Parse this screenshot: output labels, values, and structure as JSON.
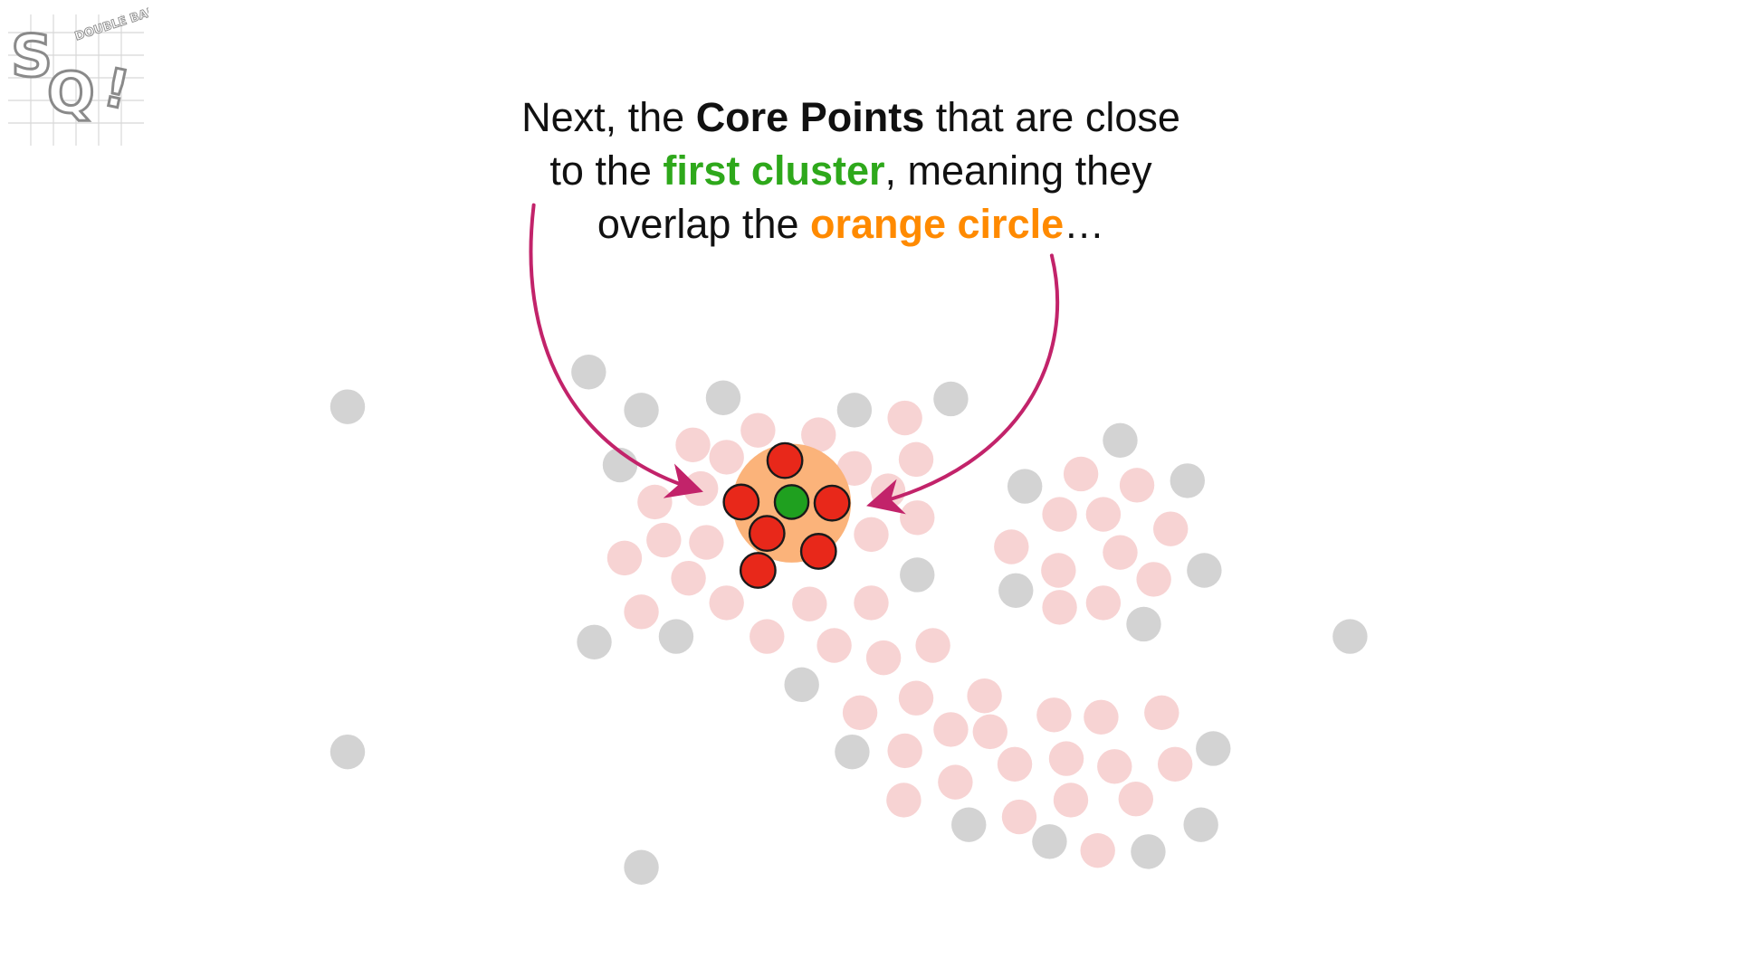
{
  "logo": {
    "main": "SQ!",
    "tag": "DOUBLE BAM!!"
  },
  "caption": {
    "line1_a": "Next, the ",
    "line1_b": "Core Points",
    "line1_c": " that are close",
    "line2_a": "to the ",
    "line2_b": "first cluster",
    "line2_c": ", meaning they",
    "line3_a": "overlap the ",
    "line3_b": "orange circle",
    "line3_c": "…"
  },
  "colors": {
    "gray_point": "#d3d3d3",
    "pink_point": "#f7d3d3",
    "red_point": "#e8281a",
    "green_point": "#1fa01f",
    "orange_circle": "#fbb37a",
    "arrow": "#c2236a",
    "green_text": "#2ea81b",
    "orange_text": "#ff8a00"
  }
}
